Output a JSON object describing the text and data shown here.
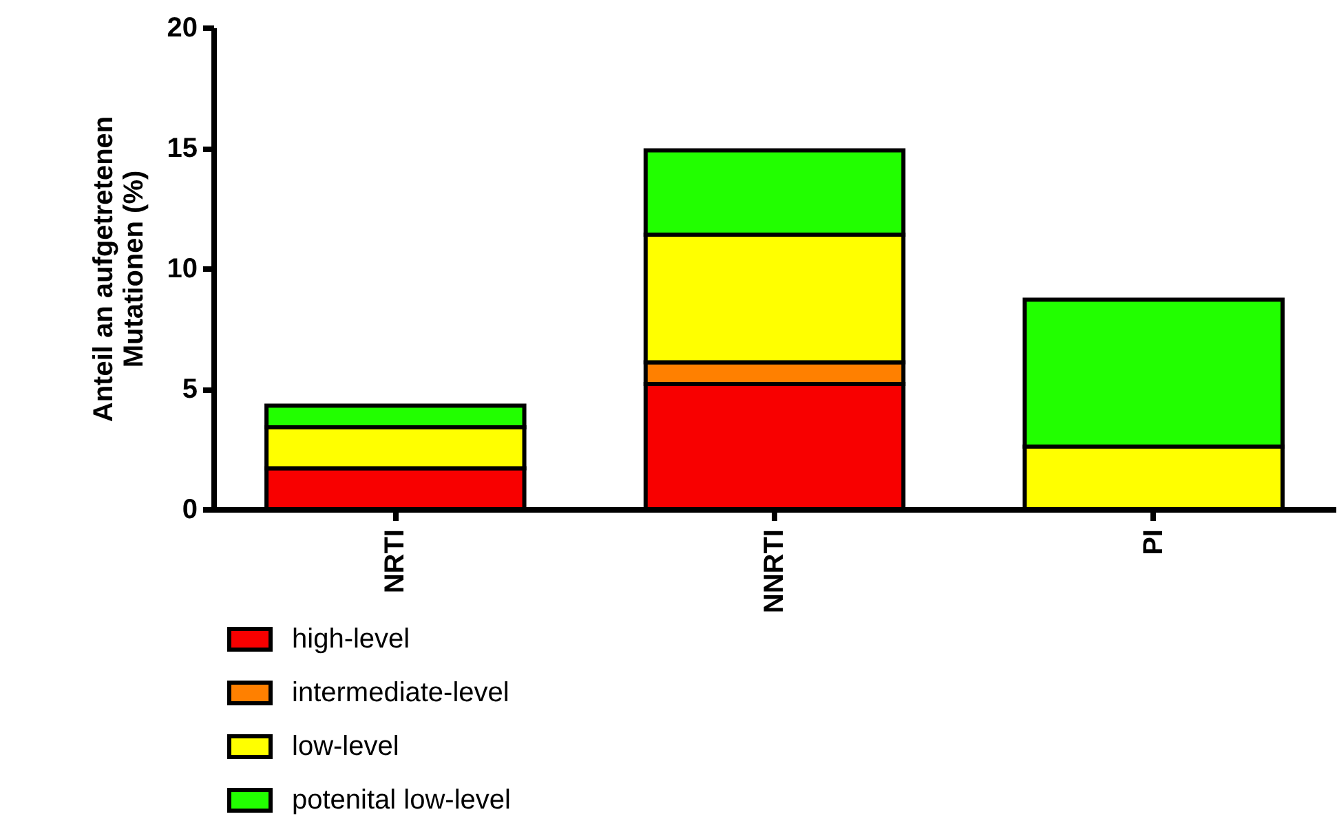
{
  "chart_data": {
    "type": "bar",
    "stacked": true,
    "ylabel": "Anteil an aufgetretenen Mutationen (%)",
    "categories": [
      "NRTI",
      "NNRTI",
      "PI"
    ],
    "series": [
      {
        "name": "high-level",
        "color": "#f80000",
        "values": [
          1.7,
          5.2,
          null
        ]
      },
      {
        "name": "intermediate-level",
        "color": "#ff8000",
        "values": [
          null,
          0.9,
          null
        ]
      },
      {
        "name": "low-level",
        "color": "#ffff00",
        "values": [
          1.7,
          5.3,
          2.6
        ]
      },
      {
        "name": "potenital low-level",
        "color": "#22ff00",
        "values": [
          0.9,
          3.5,
          6.1
        ]
      }
    ],
    "ylim": [
      0,
      20
    ],
    "yticks": [
      0,
      5,
      10,
      15,
      20
    ],
    "grid": false,
    "legend": "bottom left"
  }
}
